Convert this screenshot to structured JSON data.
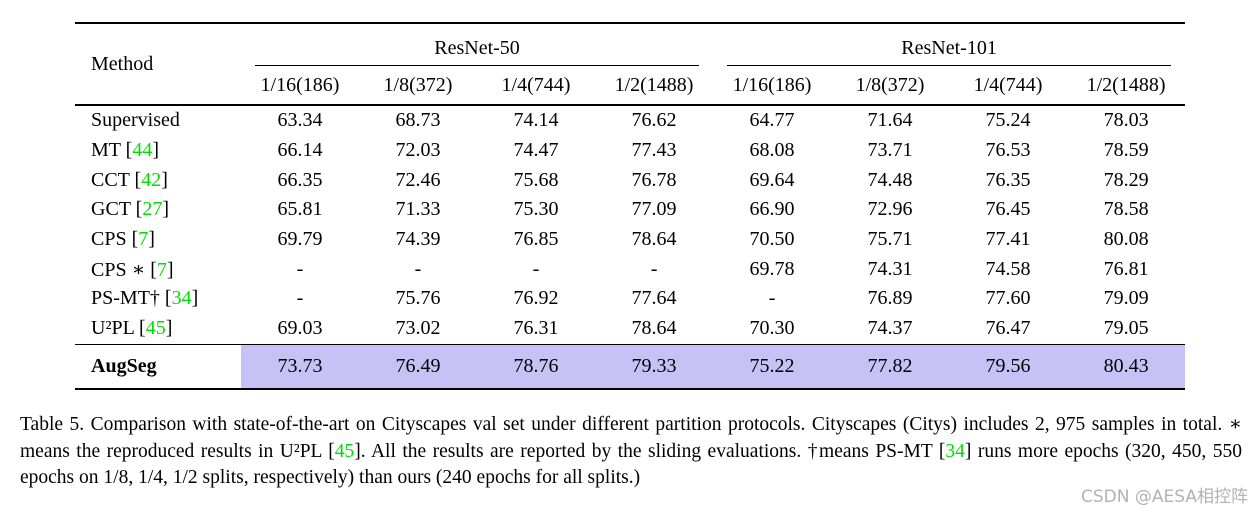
{
  "colors": {
    "citation_green": "#00dd00",
    "highlight_lavender": "#c7c2f5",
    "watermark_gray": "#b2b2b2"
  },
  "table": {
    "method_header": "Method",
    "groups": [
      "ResNet-50",
      "ResNet-101"
    ],
    "split_headers": [
      "1/16(186)",
      "1/8(372)",
      "1/4(744)",
      "1/2(1488)",
      "1/16(186)",
      "1/8(372)",
      "1/4(744)",
      "1/2(1488)"
    ],
    "rows": [
      {
        "method": "Supervised",
        "cite": null,
        "values": [
          "63.34",
          "68.73",
          "74.14",
          "76.62",
          "64.77",
          "71.64",
          "75.24",
          "78.03"
        ]
      },
      {
        "method": "MT",
        "cite": "44",
        "values": [
          "66.14",
          "72.03",
          "74.47",
          "77.43",
          "68.08",
          "73.71",
          "76.53",
          "78.59"
        ]
      },
      {
        "method": "CCT",
        "cite": "42",
        "values": [
          "66.35",
          "72.46",
          "75.68",
          "76.78",
          "69.64",
          "74.48",
          "76.35",
          "78.29"
        ]
      },
      {
        "method": "GCT",
        "cite": "27",
        "values": [
          "65.81",
          "71.33",
          "75.30",
          "77.09",
          "66.90",
          "72.96",
          "76.45",
          "78.58"
        ]
      },
      {
        "method": "CPS",
        "cite": "7",
        "values": [
          "69.79",
          "74.39",
          "76.85",
          "78.64",
          "70.50",
          "75.71",
          "77.41",
          "80.08"
        ]
      },
      {
        "method": "CPS ∗",
        "cite": "7",
        "values": [
          "-",
          "-",
          "-",
          "-",
          "69.78",
          "74.31",
          "74.58",
          "76.81"
        ]
      },
      {
        "method": "PS-MT†",
        "cite": "34",
        "values": [
          "-",
          "75.76",
          "76.92",
          "77.64",
          "-",
          "76.89",
          "77.60",
          "79.09"
        ]
      },
      {
        "method": "U²PL",
        "cite": "45",
        "values": [
          "69.03",
          "73.02",
          "76.31",
          "78.64",
          "70.30",
          "74.37",
          "76.47",
          "79.05"
        ]
      },
      {
        "method": "AugSeg",
        "cite": null,
        "bold": true,
        "highlight": true,
        "values": [
          "73.73",
          "76.49",
          "78.76",
          "79.33",
          "75.22",
          "77.82",
          "79.56",
          "80.43"
        ]
      }
    ]
  },
  "caption": {
    "parts": [
      {
        "text": "Table 5.  Comparison with state-of-the-art on Cityscapes val set under different partition protocols.  Cityscapes (Citys) includes 2, 975 samples in total. ∗ means the reproduced results in U²PL [",
        "green": false
      },
      {
        "text": "45",
        "green": true
      },
      {
        "text": "]. All the results are reported by the sliding evaluations. †means PS-MT [",
        "green": false
      },
      {
        "text": "34",
        "green": true
      },
      {
        "text": "] runs more epochs (320, 450, 550 epochs on 1/8, 1/4, 1/2 splits, respectively) than ours (240 epochs for all splits.)",
        "green": false
      }
    ]
  },
  "watermark": "CSDN @AESA相控阵"
}
